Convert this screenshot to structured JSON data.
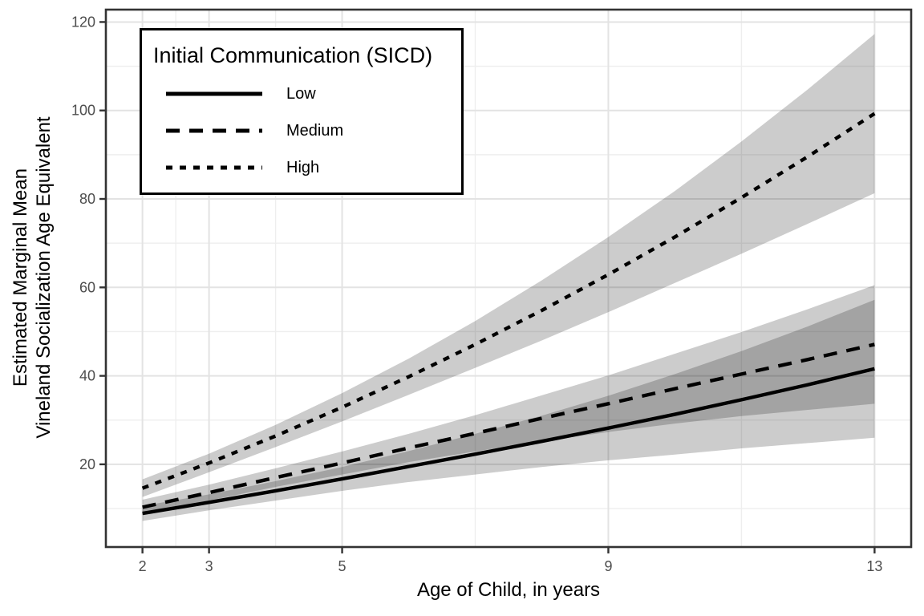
{
  "chart_data": {
    "type": "line",
    "title": "",
    "xlabel": "Age of Child, in years",
    "ylabel_line1": "Estimated Marginal Mean",
    "ylabel_line2": "Vineland Socialization Age Equivalent",
    "legend_title": "Initial Communication (SICD)",
    "legend_position": "top-left-inside",
    "grid": "major-and-minor",
    "x": [
      2,
      3,
      4,
      5,
      6,
      7,
      8,
      9,
      10,
      11,
      12,
      13
    ],
    "xlim": [
      1.45,
      13.55
    ],
    "ylim": [
      1.3,
      122.8
    ],
    "x_breaks": [
      2,
      3,
      5,
      9,
      13
    ],
    "x_minor_breaks": [
      2.5,
      4,
      7,
      11
    ],
    "y_breaks": [
      20,
      40,
      60,
      80,
      100,
      120
    ],
    "y_minor_breaks": [
      10,
      30,
      50,
      70,
      90,
      110
    ],
    "series": [
      {
        "name": "Low",
        "linetype": "solid",
        "values": [
          8.9,
          11.4,
          14.0,
          16.7,
          19.5,
          22.3,
          25.2,
          28.2,
          31.3,
          34.6,
          38.0,
          41.6
        ],
        "lower": [
          7.2,
          9.6,
          11.8,
          14.0,
          16.0,
          17.7,
          19.4,
          20.9,
          22.2,
          23.6,
          24.8,
          26.0
        ],
        "upper": [
          10.6,
          13.2,
          16.2,
          19.4,
          23.0,
          26.9,
          31.0,
          35.5,
          40.4,
          45.6,
          51.2,
          57.2
        ]
      },
      {
        "name": "Medium",
        "linetype": "dashed",
        "values": [
          10.3,
          13.6,
          17.0,
          20.3,
          23.7,
          27.0,
          30.4,
          33.7,
          37.1,
          40.4,
          43.7,
          47.1
        ],
        "lower": [
          8.6,
          11.8,
          14.9,
          17.7,
          20.5,
          22.9,
          25.2,
          27.3,
          29.2,
          30.9,
          32.3,
          33.7
        ],
        "upper": [
          12.0,
          15.4,
          19.1,
          22.9,
          26.9,
          31.1,
          35.6,
          40.1,
          45.0,
          49.9,
          55.1,
          60.5
        ]
      },
      {
        "name": "High",
        "linetype": "dotted",
        "values": [
          14.6,
          20.3,
          26.4,
          32.9,
          39.8,
          47.1,
          54.8,
          62.9,
          71.4,
          80.3,
          89.6,
          99.3
        ],
        "lower": [
          12.6,
          18.2,
          23.9,
          29.7,
          35.7,
          41.8,
          48.0,
          54.4,
          61.0,
          67.6,
          74.4,
          81.3
        ],
        "upper": [
          16.6,
          22.4,
          28.9,
          36.1,
          43.9,
          52.4,
          61.6,
          71.4,
          81.8,
          93.0,
          104.8,
          117.3
        ]
      }
    ],
    "colors": {
      "line": "#000000",
      "ribbon": "rgba(0,0,0,0.2)",
      "grid_major": "#E3E3E3",
      "grid_minor": "#EEEEEE",
      "panel_border": "#333333",
      "tick_mark": "#333333",
      "tick_label": "#4D4D4D",
      "axis_title": "#000000",
      "panel_background": "#FFFFFF"
    }
  }
}
